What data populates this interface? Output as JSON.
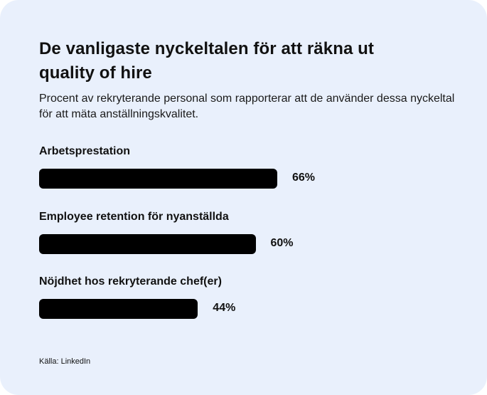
{
  "title_line1": "De vanligaste nyckeltalen för att räkna ut",
  "title_line2": "quality of hire",
  "subtitle": "Procent av rekryterande personal som rapporterar att de använder dessa nyckeltal för att mäta anställningskvalitet.",
  "source": "Källa: LinkedIn",
  "colors": {
    "background": "#e9f0fc",
    "bar": "#000000",
    "text": "#111111"
  },
  "chart_data": {
    "type": "bar",
    "orientation": "horizontal",
    "categories": [
      "Arbetsprestation",
      "Employee retention för nyanställda",
      "Nöjdhet hos rekryterande chef(er)"
    ],
    "values": [
      66,
      60,
      44
    ],
    "value_labels": [
      "66%",
      "60%",
      "44%"
    ],
    "unit": "%",
    "xlim": [
      0,
      100
    ],
    "grid": false,
    "legend": "none"
  }
}
